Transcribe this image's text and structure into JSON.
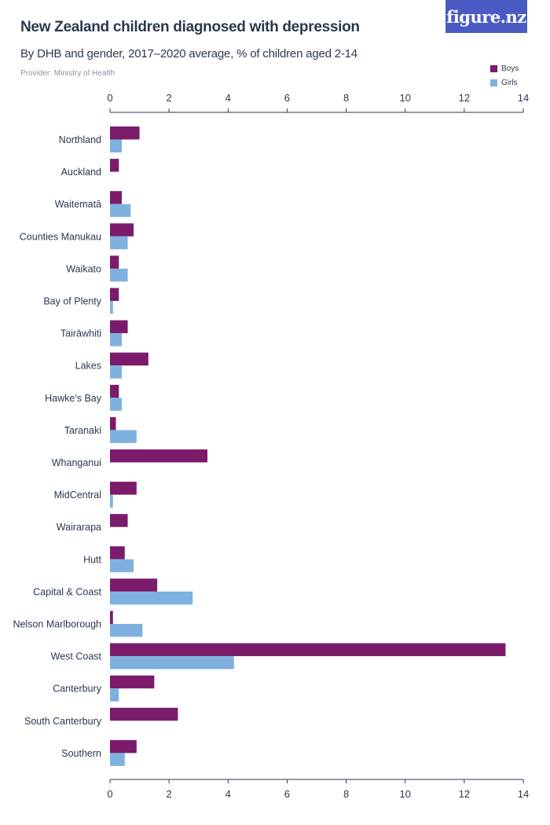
{
  "header": {
    "title": "New Zealand children diagnosed with depression",
    "subtitle": "By DHB and gender, 2017–2020 average, % of children aged 2-14",
    "provider": "Provider: Ministry of Health",
    "logo": "figure.nz"
  },
  "colors": {
    "boys": "#7b1b6a",
    "girls": "#7fb1e0",
    "axis": "#2a3950"
  },
  "chart_data": {
    "type": "bar",
    "orientation": "horizontal",
    "title": "New Zealand children diagnosed with depression",
    "subtitle": "By DHB and gender, 2017–2020 average, % of children aged 2-14",
    "xlim": [
      0,
      14
    ],
    "xticks": [
      0,
      2,
      4,
      6,
      8,
      10,
      12,
      14
    ],
    "xtick_labels": [
      "0",
      "2",
      "4",
      "6",
      "8",
      "10",
      "12",
      "14"
    ],
    "legend_position": "top-right",
    "grid": false,
    "categories": [
      "Northland",
      "Auckland",
      "Waitematā",
      "Counties Manukau",
      "Waikato",
      "Bay of Plenty",
      "Tairāwhiti",
      "Lakes",
      "Hawke's Bay",
      "Taranaki",
      "Whanganui",
      "MidCentral",
      "Wairarapa",
      "Hutt",
      "Capital & Coast",
      "Nelson Marlborough",
      "West Coast",
      "Canterbury",
      "South Canterbury",
      "Southern"
    ],
    "series": [
      {
        "name": "Boys",
        "values": [
          1.0,
          0.3,
          0.4,
          0.8,
          0.3,
          0.3,
          0.6,
          1.3,
          0.3,
          0.2,
          3.3,
          0.9,
          0.6,
          0.5,
          1.6,
          0.1,
          13.4,
          1.5,
          2.3,
          0.9
        ]
      },
      {
        "name": "Girls",
        "values": [
          0.4,
          0.0,
          0.7,
          0.6,
          0.6,
          0.1,
          0.4,
          0.4,
          0.4,
          0.9,
          0.0,
          0.1,
          0.0,
          0.8,
          2.8,
          1.1,
          4.2,
          0.3,
          0.0,
          0.5
        ]
      }
    ]
  }
}
